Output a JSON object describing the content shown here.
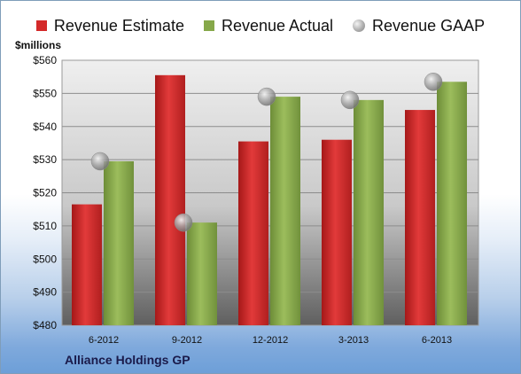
{
  "chart_data": {
    "type": "bar",
    "units_label": "$millions",
    "categories": [
      "6-2012",
      "9-2012",
      "12-2012",
      "3-2013",
      "6-2013"
    ],
    "series": [
      {
        "name": "Revenue Estimate",
        "kind": "bar",
        "color": "#d42a2a",
        "values": [
          516.5,
          555.5,
          535.5,
          536,
          545
        ]
      },
      {
        "name": "Revenue Actual",
        "kind": "bar",
        "color": "#86a84a",
        "values": [
          529.5,
          511,
          549,
          548,
          553.5
        ]
      },
      {
        "name": "Revenue GAAP",
        "kind": "point",
        "color": "#a9a9a9",
        "values": [
          529.5,
          511,
          549,
          548,
          553.5
        ]
      }
    ],
    "y_ticks": [
      "$480",
      "$490",
      "$500",
      "$510",
      "$520",
      "$530",
      "$540",
      "$550",
      "$560"
    ],
    "ylim": [
      480,
      560
    ],
    "grid": true,
    "legend_position": "top"
  },
  "footer": {
    "company": "Alliance Holdings GP"
  }
}
